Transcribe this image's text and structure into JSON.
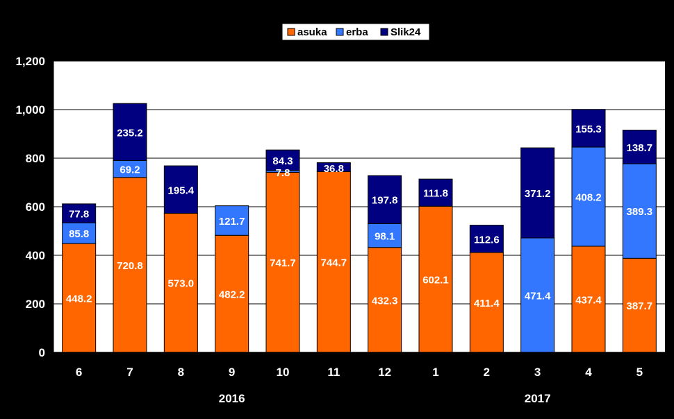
{
  "chart_data": {
    "type": "bar",
    "stacked": true,
    "title": "",
    "xlabel": "",
    "ylabel": "",
    "ylim": [
      0,
      1200
    ],
    "ytick_labels": [
      "0",
      "200",
      "400",
      "600",
      "800",
      "1,000",
      "1,200"
    ],
    "yticks": [
      0,
      200,
      400,
      600,
      800,
      1000,
      1200
    ],
    "grid": true,
    "legend_position": "top-center",
    "categories": [
      "6",
      "7",
      "8",
      "9",
      "10",
      "11",
      "12",
      "1",
      "2",
      "3",
      "4",
      "5"
    ],
    "year_labels": [
      {
        "label": "2016",
        "from_index": 0,
        "to_index": 6
      },
      {
        "label": "2017",
        "from_index": 7,
        "to_index": 11
      }
    ],
    "series": [
      {
        "name": "asuka",
        "color": "#FF6600",
        "values": [
          448.2,
          720.8,
          573.0,
          482.2,
          741.7,
          744.7,
          432.3,
          602.1,
          411.4,
          null,
          437.4,
          387.7
        ],
        "labels": [
          "448.2",
          "720.8",
          "573.0",
          "482.2",
          "741.7",
          "744.7",
          "432.3",
          "602.1",
          "411.4",
          null,
          "437.4",
          "387.7"
        ]
      },
      {
        "name": "erba",
        "color": "#3377FF",
        "values": [
          85.8,
          69.2,
          null,
          121.7,
          7.8,
          null,
          98.1,
          null,
          null,
          471.4,
          408.2,
          389.3
        ],
        "labels": [
          "85.8",
          "69.2",
          null,
          "121.7",
          "7.8",
          null,
          "98.1",
          null,
          null,
          "471.4",
          "408.2",
          "389.3"
        ]
      },
      {
        "name": "Slik24",
        "color": "#000080",
        "values": [
          77.8,
          235.2,
          195.4,
          null,
          84.3,
          36.8,
          197.8,
          111.8,
          112.6,
          371.2,
          155.3,
          138.7
        ],
        "labels": [
          "77.8",
          "235.2",
          "195.4",
          null,
          "84.3",
          "36.8",
          "197.8",
          "111.8",
          "112.6",
          "371.2",
          "155.3",
          "138.7"
        ]
      }
    ]
  }
}
